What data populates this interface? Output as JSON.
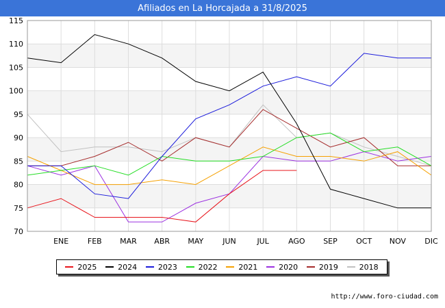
{
  "header": {
    "title": "Afiliados en La Horcajada a 31/8/2025"
  },
  "footer": {
    "url": "http://www.foro-ciudad.com"
  },
  "chart_data": {
    "type": "line",
    "title": "Afiliados en La Horcajada a 31/8/2025",
    "xlabel": "",
    "ylabel": "",
    "categories": [
      "",
      "ENE",
      "FEB",
      "MAR",
      "ABR",
      "MAY",
      "JUN",
      "JUL",
      "AGO",
      "SEP",
      "OCT",
      "NOV",
      "DIC"
    ],
    "ylim": [
      70,
      115
    ],
    "yticks": [
      70,
      75,
      80,
      85,
      90,
      95,
      100,
      105,
      110,
      115
    ],
    "grid": true,
    "legend_position": "bottom",
    "series": [
      {
        "name": "2025",
        "color": "#e8141b",
        "values": [
          75,
          77,
          73,
          73,
          73,
          72,
          78,
          83,
          83,
          null,
          null,
          null,
          null
        ]
      },
      {
        "name": "2024",
        "color": "#000000",
        "values": [
          107,
          106,
          112,
          110,
          107,
          102,
          100,
          104,
          93,
          79,
          77,
          75,
          75
        ]
      },
      {
        "name": "2023",
        "color": "#1a1adb",
        "values": [
          84,
          84,
          78,
          77,
          86,
          94,
          97,
          101,
          103,
          101,
          108,
          107,
          107
        ]
      },
      {
        "name": "2022",
        "color": "#22dd22",
        "values": [
          82,
          83,
          84,
          82,
          86,
          85,
          85,
          86,
          90,
          91,
          87,
          88,
          84
        ]
      },
      {
        "name": "2021",
        "color": "#f5a000",
        "values": [
          86,
          83,
          80,
          80,
          81,
          80,
          84,
          88,
          86,
          86,
          85,
          87,
          82
        ]
      },
      {
        "name": "2020",
        "color": "#9b30e0",
        "values": [
          84,
          82,
          84,
          72,
          72,
          76,
          78,
          86,
          85,
          85,
          87,
          85,
          86
        ]
      },
      {
        "name": "2019",
        "color": "#a52a2a",
        "values": [
          84,
          84,
          86,
          89,
          85,
          90,
          88,
          96,
          92,
          88,
          90,
          84,
          84
        ]
      },
      {
        "name": "2018",
        "color": "#c0c0c0",
        "values": [
          95,
          87,
          88,
          88,
          87,
          90,
          88,
          97,
          90,
          91,
          88,
          86,
          84
        ]
      }
    ]
  }
}
